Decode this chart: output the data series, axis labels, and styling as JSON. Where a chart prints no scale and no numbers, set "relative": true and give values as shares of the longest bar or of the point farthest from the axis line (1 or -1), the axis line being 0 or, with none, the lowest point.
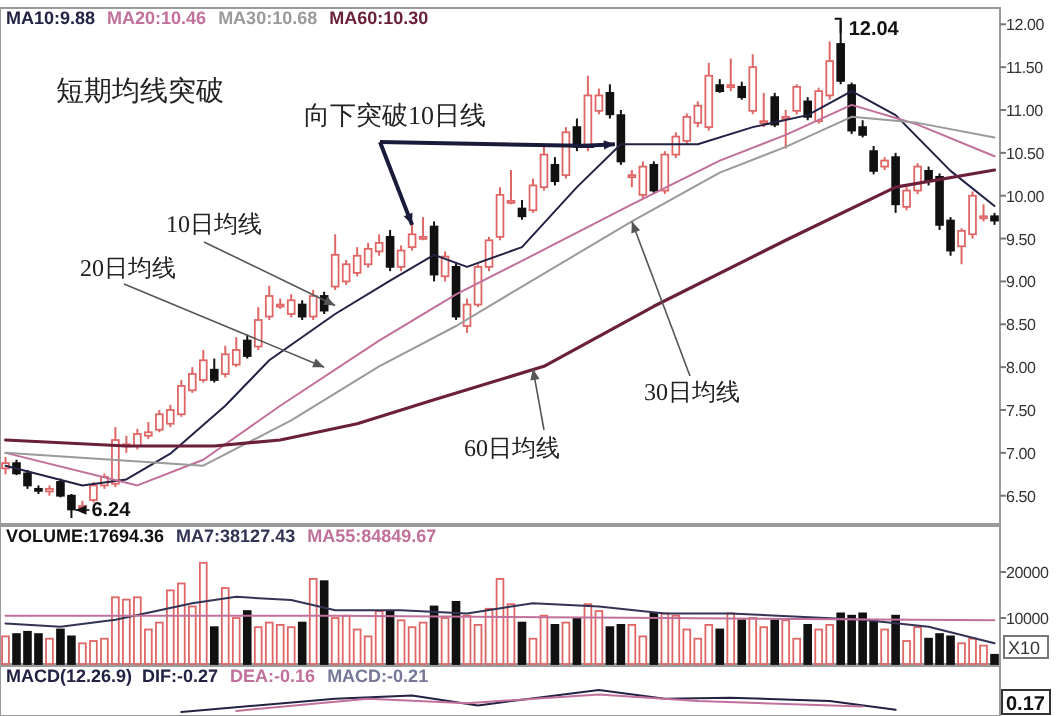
{
  "chart_data": [
    {
      "type": "candlestick",
      "categories": [
        null,
        null,
        null,
        null,
        null,
        null,
        null,
        null,
        null,
        null,
        null,
        null,
        null,
        null,
        null,
        null,
        null,
        null,
        null,
        null,
        null,
        null,
        null,
        null,
        null,
        null,
        null,
        null,
        null,
        null,
        null,
        null,
        null,
        null,
        null,
        null,
        null,
        null,
        null,
        null,
        null,
        null,
        null,
        null,
        null,
        null,
        null,
        null,
        null,
        null,
        null,
        null,
        null,
        null,
        null,
        null,
        null,
        null,
        null,
        null,
        null,
        null,
        null,
        null,
        null,
        null,
        null,
        null,
        null,
        null,
        null,
        null,
        null,
        null,
        null,
        null,
        null,
        null,
        null,
        null,
        null,
        null,
        null,
        null,
        null,
        null,
        null,
        null,
        null,
        null,
        null
      ],
      "ohlc": [
        [
          6.82,
          6.95,
          6.75,
          6.88
        ],
        [
          6.88,
          6.92,
          6.74,
          6.76
        ],
        [
          6.76,
          6.8,
          6.58,
          6.62
        ],
        [
          6.58,
          6.62,
          6.52,
          6.56
        ],
        [
          6.55,
          6.62,
          6.5,
          6.58
        ],
        [
          6.66,
          6.7,
          6.48,
          6.5
        ],
        [
          6.5,
          6.52,
          6.24,
          6.34
        ],
        [
          6.36,
          6.44,
          6.3,
          6.38
        ],
        [
          6.45,
          6.66,
          6.42,
          6.62
        ],
        [
          6.62,
          6.76,
          6.58,
          6.72
        ],
        [
          6.64,
          7.3,
          6.6,
          7.15
        ],
        [
          7.08,
          7.2,
          7.0,
          7.1
        ],
        [
          7.08,
          7.28,
          7.04,
          7.22
        ],
        [
          7.2,
          7.36,
          7.16,
          7.24
        ],
        [
          7.27,
          7.5,
          7.24,
          7.45
        ],
        [
          7.34,
          7.56,
          7.3,
          7.5
        ],
        [
          7.45,
          7.85,
          7.42,
          7.78
        ],
        [
          7.73,
          8.0,
          7.7,
          7.92
        ],
        [
          7.85,
          8.2,
          7.82,
          8.08
        ],
        [
          7.97,
          8.1,
          7.82,
          7.85
        ],
        [
          7.92,
          8.25,
          7.88,
          8.15
        ],
        [
          8.03,
          8.35,
          8.0,
          8.2
        ],
        [
          8.31,
          8.38,
          8.1,
          8.13
        ],
        [
          8.24,
          8.7,
          8.2,
          8.55
        ],
        [
          8.59,
          8.95,
          8.55,
          8.83
        ],
        [
          8.73,
          8.8,
          8.68,
          8.73
        ],
        [
          8.62,
          8.85,
          8.58,
          8.78
        ],
        [
          8.73,
          8.78,
          8.55,
          8.59
        ],
        [
          8.59,
          8.9,
          8.55,
          8.83
        ],
        [
          8.83,
          8.88,
          8.62,
          8.66
        ],
        [
          8.94,
          9.55,
          8.9,
          9.31
        ],
        [
          9.0,
          9.25,
          8.96,
          9.2
        ],
        [
          9.1,
          9.4,
          9.06,
          9.3
        ],
        [
          9.2,
          9.45,
          9.16,
          9.38
        ],
        [
          9.35,
          9.55,
          9.3,
          9.45
        ],
        [
          9.52,
          9.6,
          9.12,
          9.17
        ],
        [
          9.17,
          9.42,
          9.12,
          9.36
        ],
        [
          9.4,
          9.7,
          9.36,
          9.55
        ],
        [
          9.52,
          9.75,
          9.48,
          9.52
        ],
        [
          9.64,
          9.7,
          9.0,
          9.08
        ],
        [
          9.06,
          9.35,
          9.0,
          9.29
        ],
        [
          9.17,
          9.22,
          8.55,
          8.59
        ],
        [
          8.48,
          8.8,
          8.4,
          8.73
        ],
        [
          8.73,
          9.2,
          8.7,
          9.17
        ],
        [
          9.17,
          9.52,
          9.12,
          9.48
        ],
        [
          9.52,
          10.1,
          9.48,
          10.01
        ],
        [
          9.94,
          10.3,
          9.9,
          9.94
        ],
        [
          9.85,
          9.95,
          9.72,
          9.76
        ],
        [
          9.83,
          10.2,
          9.8,
          10.12
        ],
        [
          10.1,
          10.6,
          10.06,
          10.48
        ],
        [
          10.36,
          10.45,
          10.12,
          10.17
        ],
        [
          10.24,
          10.8,
          10.2,
          10.74
        ],
        [
          10.8,
          10.9,
          10.52,
          10.57
        ],
        [
          10.57,
          11.4,
          10.52,
          11.17
        ],
        [
          10.99,
          11.25,
          10.95,
          11.17
        ],
        [
          11.2,
          11.3,
          10.9,
          10.95
        ],
        [
          10.94,
          11.0,
          10.36,
          10.4
        ],
        [
          10.24,
          10.3,
          10.1,
          10.24
        ],
        [
          10.01,
          10.4,
          9.96,
          10.34
        ],
        [
          10.36,
          10.4,
          10.02,
          10.06
        ],
        [
          10.06,
          10.52,
          10.02,
          10.48
        ],
        [
          10.48,
          10.74,
          10.44,
          10.69
        ],
        [
          10.64,
          10.96,
          10.6,
          10.92
        ],
        [
          10.85,
          11.1,
          10.8,
          11.05
        ],
        [
          10.8,
          11.55,
          10.76,
          11.4
        ],
        [
          11.29,
          11.36,
          11.2,
          11.22
        ],
        [
          11.29,
          11.6,
          11.22,
          11.29
        ],
        [
          11.27,
          11.33,
          11.12,
          11.15
        ],
        [
          10.99,
          11.65,
          10.95,
          11.5
        ],
        [
          10.87,
          11.2,
          10.8,
          10.87
        ],
        [
          11.15,
          11.2,
          10.8,
          10.83
        ],
        [
          10.92,
          11.0,
          10.55,
          10.92
        ],
        [
          10.99,
          11.3,
          10.95,
          11.27
        ],
        [
          11.1,
          11.15,
          10.88,
          10.92
        ],
        [
          10.87,
          11.26,
          10.84,
          11.22
        ],
        [
          11.17,
          11.8,
          11.12,
          11.57
        ],
        [
          11.77,
          12.04,
          11.3,
          11.34
        ],
        [
          11.29,
          11.32,
          10.72,
          10.76
        ],
        [
          10.8,
          10.88,
          10.68,
          10.71
        ],
        [
          10.52,
          10.58,
          10.25,
          10.29
        ],
        [
          10.34,
          10.45,
          10.3,
          10.41
        ],
        [
          10.45,
          10.5,
          9.8,
          9.9
        ],
        [
          9.87,
          10.1,
          9.83,
          10.06
        ],
        [
          10.06,
          10.38,
          10.02,
          10.34
        ],
        [
          10.29,
          10.34,
          10.12,
          10.17
        ],
        [
          10.22,
          10.26,
          9.6,
          9.66
        ],
        [
          9.71,
          9.75,
          9.3,
          9.36
        ],
        [
          9.41,
          9.62,
          9.2,
          9.59
        ],
        [
          9.55,
          10.05,
          9.5,
          10.0
        ],
        [
          9.76,
          9.9,
          9.7,
          9.76
        ],
        [
          9.76,
          9.8,
          9.66,
          9.71
        ]
      ],
      "colors": [
        "#e06666",
        "#111111",
        "#111111",
        "#111111",
        "#e06666",
        "#111111",
        "#111111",
        "#e06666",
        "#e06666",
        "#e06666",
        "#e06666",
        "#e06666",
        "#e06666",
        "#e06666",
        "#e06666",
        "#e06666",
        "#e06666",
        "#e06666",
        "#e06666",
        "#111111",
        "#e06666",
        "#e06666",
        "#111111",
        "#e06666",
        "#e06666",
        "#e06666",
        "#e06666",
        "#111111",
        "#e06666",
        "#111111",
        "#e06666",
        "#e06666",
        "#e06666",
        "#e06666",
        "#e06666",
        "#111111",
        "#e06666",
        "#e06666",
        "#e06666",
        "#111111",
        "#e06666",
        "#111111",
        "#e06666",
        "#e06666",
        "#e06666",
        "#e06666",
        "#e06666",
        "#111111",
        "#e06666",
        "#e06666",
        "#111111",
        "#e06666",
        "#111111",
        "#e06666",
        "#e06666",
        "#111111",
        "#111111",
        "#e06666",
        "#e06666",
        "#111111",
        "#e06666",
        "#e06666",
        "#e06666",
        "#e06666",
        "#e06666",
        "#111111",
        "#e06666",
        "#111111",
        "#e06666",
        "#e06666",
        "#111111",
        "#e06666",
        "#e06666",
        "#111111",
        "#e06666",
        "#e06666",
        "#111111",
        "#111111",
        "#111111",
        "#111111",
        "#e06666",
        "#111111",
        "#e06666",
        "#e06666",
        "#111111",
        "#111111",
        "#111111",
        "#e06666",
        "#e06666",
        "#e06666",
        "#111111"
      ],
      "series": [
        {
          "name": "MA10:9.88",
          "type": "line",
          "color": "#222244",
          "values": [
            6.85,
            null,
            null,
            null,
            null,
            null,
            null,
            6.62,
            null,
            null,
            null,
            6.69,
            null,
            null,
            null,
            6.99,
            null,
            null,
            null,
            null,
            7.55,
            null,
            null,
            null,
            8.08,
            null,
            null,
            null,
            null,
            null,
            8.62,
            null,
            null,
            null,
            null,
            9.01,
            null,
            null,
            null,
            9.31,
            null,
            null,
            9.17,
            null,
            null,
            null,
            null,
            9.4,
            null,
            null,
            null,
            null,
            10.1,
            null,
            null,
            null,
            10.6,
            null,
            null,
            null,
            null,
            null,
            null,
            10.6,
            null,
            null,
            null,
            null,
            10.8,
            null,
            null,
            null,
            null,
            10.94,
            null,
            null,
            null,
            11.22,
            null,
            null,
            null,
            10.94,
            null,
            null,
            null,
            null,
            10.29,
            null,
            null,
            null,
            9.88
          ]
        },
        {
          "name": "MA20:10.46",
          "type": "line",
          "color": "#c0709a",
          "values": [
            7.0,
            null,
            null,
            null,
            null,
            null,
            null,
            null,
            null,
            null,
            null,
            null,
            6.62,
            null,
            null,
            null,
            null,
            null,
            6.92,
            null,
            null,
            null,
            null,
            null,
            null,
            7.55,
            null,
            null,
            null,
            null,
            null,
            null,
            null,
            null,
            8.31,
            null,
            null,
            null,
            null,
            null,
            null,
            8.85,
            null,
            null,
            null,
            null,
            null,
            9.24,
            null,
            null,
            null,
            null,
            null,
            null,
            null,
            null,
            null,
            9.9,
            null,
            null,
            null,
            null,
            null,
            null,
            null,
            10.41,
            null,
            null,
            null,
            null,
            null,
            10.71,
            null,
            null,
            null,
            null,
            null,
            11.06,
            null,
            null,
            null,
            null,
            null,
            10.83,
            null,
            null,
            null,
            null,
            null,
            null,
            10.46
          ]
        },
        {
          "name": "MA30:10.68",
          "type": "line",
          "color": "#9a9a9a",
          "values": [
            7.0,
            null,
            null,
            null,
            null,
            null,
            null,
            null,
            null,
            null,
            null,
            null,
            null,
            null,
            null,
            null,
            null,
            null,
            6.85,
            null,
            null,
            null,
            null,
            null,
            null,
            null,
            7.38,
            null,
            null,
            null,
            null,
            null,
            null,
            null,
            8.01,
            null,
            null,
            null,
            null,
            null,
            null,
            8.48,
            null,
            null,
            null,
            null,
            null,
            8.94,
            null,
            null,
            null,
            null,
            null,
            null,
            null,
            null,
            null,
            9.7,
            null,
            null,
            null,
            null,
            null,
            null,
            null,
            10.27,
            null,
            null,
            null,
            null,
            null,
            10.57,
            null,
            null,
            null,
            null,
            null,
            10.92,
            null,
            null,
            null,
            null,
            null,
            10.85,
            null,
            null,
            null,
            null,
            null,
            null,
            10.68
          ]
        },
        {
          "name": "MA60:10.30",
          "type": "line",
          "color": "#6a1f3a",
          "values": [
            7.15,
            null,
            null,
            null,
            null,
            null,
            null,
            null,
            null,
            null,
            null,
            7.08,
            null,
            null,
            null,
            null,
            null,
            null,
            null,
            7.08,
            null,
            null,
            null,
            null,
            null,
            7.15,
            null,
            null,
            null,
            null,
            null,
            null,
            7.34,
            null,
            null,
            null,
            null,
            null,
            null,
            7.62,
            null,
            null,
            null,
            null,
            null,
            null,
            null,
            null,
            null,
            8.01,
            null,
            null,
            null,
            null,
            null,
            null,
            null,
            null,
            null,
            8.71,
            null,
            null,
            null,
            null,
            null,
            null,
            null,
            null,
            null,
            null,
            null,
            9.48,
            null,
            null,
            null,
            null,
            null,
            null,
            null,
            null,
            null,
            10.1,
            null,
            null,
            null,
            null,
            null,
            null,
            null,
            null,
            10.3
          ]
        }
      ],
      "legend": "top left",
      "ylim": [
        6.17,
        12.19
      ],
      "yticks": [
        {
          "value": 6.5,
          "label": "6.50"
        },
        {
          "value": 7.0,
          "label": "7.00"
        },
        {
          "value": 7.5,
          "label": "7.50"
        },
        {
          "value": 8.0,
          "label": "8.00"
        },
        {
          "value": 8.5,
          "label": "8.50"
        },
        {
          "value": 9.0,
          "label": "9.00"
        },
        {
          "value": 9.5,
          "label": "9.50"
        },
        {
          "value": 10.0,
          "label": "10.00"
        },
        {
          "value": 10.5,
          "label": "10.50"
        },
        {
          "value": 11.0,
          "label": "11.00"
        },
        {
          "value": 11.5,
          "label": "11.50"
        },
        {
          "value": 12.0,
          "label": "12.00"
        }
      ],
      "tick_labels": "y",
      "annotations": [
        "短期均线突破",
        "向下突破10日线",
        "10日均线",
        "20日均线",
        "30日均线",
        "60日均线",
        "12.04",
        "6.24"
      ]
    },
    {
      "type": "bar",
      "categories": [
        null,
        null,
        null,
        null,
        null,
        null,
        null,
        null,
        null,
        null,
        null,
        null,
        null,
        null,
        null,
        null,
        null,
        null,
        null,
        null,
        null,
        null,
        null,
        null,
        null,
        null,
        null,
        null,
        null,
        null,
        null,
        null,
        null,
        null,
        null,
        null,
        null,
        null,
        null,
        null,
        null,
        null,
        null,
        null,
        null,
        null,
        null,
        null,
        null,
        null,
        null,
        null,
        null,
        null,
        null,
        null,
        null,
        null,
        null,
        null,
        null,
        null,
        null,
        null,
        null,
        null,
        null,
        null,
        null,
        null,
        null,
        null,
        null,
        null,
        null,
        null,
        null,
        null,
        null,
        null,
        null,
        null,
        null,
        null,
        null,
        null,
        null,
        null,
        null,
        null,
        null
      ],
      "series": [
        {
          "name": "VOLUME:17694.36",
          "color": "#111111",
          "colors": [
            "#e06666",
            "#111111",
            "#111111",
            "#111111",
            "#e06666",
            "#111111",
            "#111111",
            "#e06666",
            "#e06666",
            "#e06666",
            "#e06666",
            "#e06666",
            "#e06666",
            "#e06666",
            "#e06666",
            "#e06666",
            "#e06666",
            "#e06666",
            "#e06666",
            "#111111",
            "#e06666",
            "#e06666",
            "#111111",
            "#e06666",
            "#e06666",
            "#e06666",
            "#e06666",
            "#111111",
            "#e06666",
            "#111111",
            "#e06666",
            "#e06666",
            "#e06666",
            "#e06666",
            "#e06666",
            "#111111",
            "#e06666",
            "#e06666",
            "#e06666",
            "#111111",
            "#e06666",
            "#111111",
            "#e06666",
            "#e06666",
            "#e06666",
            "#e06666",
            "#e06666",
            "#111111",
            "#e06666",
            "#e06666",
            "#111111",
            "#e06666",
            "#111111",
            "#e06666",
            "#e06666",
            "#111111",
            "#111111",
            "#e06666",
            "#e06666",
            "#111111",
            "#e06666",
            "#e06666",
            "#e06666",
            "#e06666",
            "#e06666",
            "#111111",
            "#e06666",
            "#111111",
            "#e06666",
            "#e06666",
            "#111111",
            "#e06666",
            "#e06666",
            "#111111",
            "#e06666",
            "#e06666",
            "#111111",
            "#111111",
            "#111111",
            "#111111",
            "#e06666",
            "#111111",
            "#e06666",
            "#e06666",
            "#111111",
            "#111111",
            "#111111",
            "#e06666",
            "#e06666",
            "#e06666",
            "#111111"
          ],
          "values": [
            6000,
            6500,
            7000,
            6500,
            5500,
            7500,
            6000,
            4500,
            5000,
            5500,
            14500,
            14000,
            14500,
            7500,
            9000,
            16000,
            17500,
            12500,
            22000,
            8000,
            16500,
            10000,
            11500,
            8000,
            9000,
            8500,
            8000,
            9000,
            18500,
            18000,
            10000,
            10500,
            7500,
            6000,
            11500,
            11500,
            9500,
            8000,
            9000,
            12500,
            10000,
            13500,
            10500,
            8500,
            12000,
            18500,
            13000,
            9000,
            5500,
            10500,
            8500,
            9000,
            10000,
            13000,
            11500,
            8000,
            8500,
            8500,
            6000,
            11000,
            11000,
            10500,
            7500,
            5500,
            8500,
            7500,
            11000,
            9500,
            10000,
            8000,
            9500,
            9500,
            5500,
            8500,
            7500,
            8500,
            11000,
            10500,
            11000,
            9500,
            7500,
            10500,
            5000,
            8000,
            5500,
            6500,
            6000,
            4500,
            5500,
            4000,
            2000
          ]
        },
        {
          "name": "MA7:38127.43",
          "type": "line",
          "color": "#333355",
          "values": [
            8800,
            null,
            null,
            null,
            null,
            8100,
            null,
            null,
            null,
            null,
            9600,
            null,
            null,
            null,
            null,
            null,
            null,
            13200,
            null,
            null,
            null,
            14600,
            null,
            null,
            null,
            null,
            13900,
            null,
            null,
            null,
            11700,
            null,
            null,
            null,
            null,
            null,
            11700,
            null,
            null,
            null,
            null,
            null,
            11000,
            null,
            null,
            null,
            null,
            null,
            13200,
            null,
            null,
            null,
            null,
            null,
            12500,
            null,
            null,
            null,
            null,
            null,
            11000,
            null,
            null,
            null,
            null,
            null,
            11000,
            null,
            null,
            null,
            null,
            null,
            null,
            null,
            null,
            null,
            null,
            null,
            9600,
            null,
            null,
            null,
            null,
            null,
            8100,
            null,
            null,
            null,
            null,
            null,
            4500
          ]
        },
        {
          "name": "MA55:84849.67",
          "type": "line",
          "color": "#c0709a",
          "values": [
            10500,
            null,
            null,
            null,
            null,
            null,
            null,
            null,
            null,
            null,
            null,
            null,
            null,
            null,
            null,
            null,
            null,
            null,
            null,
            null,
            null,
            null,
            null,
            null,
            null,
            null,
            null,
            null,
            null,
            null,
            10500,
            null,
            null,
            null,
            null,
            null,
            null,
            null,
            null,
            null,
            null,
            null,
            null,
            null,
            null,
            null,
            null,
            null,
            null,
            null,
            null,
            null,
            null,
            null,
            null,
            null,
            null,
            null,
            null,
            null,
            10000,
            null,
            null,
            null,
            null,
            null,
            null,
            null,
            null,
            null,
            null,
            null,
            null,
            null,
            null,
            null,
            null,
            null,
            null,
            null,
            null,
            null,
            null,
            null,
            null,
            null,
            null,
            null,
            null,
            null,
            9500
          ]
        }
      ],
      "legend": "top left",
      "ylim": [
        0,
        30000
      ],
      "yticks": [
        10000,
        20000
      ],
      "tick_labels": "y",
      "annotations": [
        "X10"
      ]
    },
    {
      "type": "line",
      "title": "MACD(12.26.9)",
      "relative": true,
      "categories": [
        null,
        null,
        null,
        null,
        null,
        null,
        null,
        null,
        null,
        null,
        null,
        null,
        null,
        null,
        null,
        null,
        null,
        null,
        null,
        null,
        null,
        null,
        null,
        null,
        null,
        null,
        null,
        null,
        null,
        null,
        null,
        null,
        null,
        null,
        null,
        null,
        null,
        null,
        null,
        null,
        null,
        null,
        null,
        null,
        null,
        null,
        null,
        null,
        null,
        null,
        null,
        null,
        null,
        null,
        null,
        null,
        null,
        null,
        null,
        null,
        null,
        null,
        null,
        null,
        null,
        null,
        null,
        null,
        null,
        null,
        null,
        null,
        null,
        null,
        null,
        null,
        null,
        null,
        null,
        null,
        null,
        null,
        null,
        null,
        null,
        null,
        null,
        null,
        null,
        null,
        null
      ],
      "series": [
        {
          "name": "DIF:-0.27",
          "color": "#222244",
          "values": [
            null,
            null,
            null,
            null,
            null,
            null,
            null,
            null,
            null,
            null,
            null,
            null,
            null,
            null,
            null,
            null,
            0,
            null,
            null,
            null,
            null,
            null,
            null,
            null,
            null,
            null,
            null,
            null,
            null,
            null,
            0.6,
            null,
            null,
            null,
            null,
            null,
            null,
            0.75,
            null,
            null,
            null,
            null,
            null,
            0.3,
            null,
            null,
            null,
            null,
            null,
            null,
            null,
            null,
            null,
            null,
            1.0,
            null,
            null,
            null,
            null,
            null,
            0.6,
            null,
            null,
            null,
            null,
            null,
            0.65,
            null,
            null,
            null,
            null,
            null,
            null,
            null,
            null,
            0.5,
            null,
            null,
            null,
            null,
            null,
            0.1,
            null,
            null,
            null,
            null,
            null,
            null,
            null,
            null,
            null
          ]
        },
        {
          "name": "DEA:-0.16",
          "color": "#c0709a",
          "values": [
            null,
            null,
            null,
            null,
            null,
            null,
            null,
            null,
            null,
            null,
            null,
            null,
            null,
            null,
            null,
            null,
            null,
            null,
            null,
            null,
            null,
            0.05,
            null,
            null,
            null,
            null,
            null,
            null,
            null,
            null,
            null,
            null,
            null,
            0.6,
            null,
            null,
            null,
            null,
            null,
            null,
            null,
            null,
            0.4,
            null,
            null,
            null,
            null,
            null,
            null,
            null,
            null,
            null,
            null,
            null,
            0.8,
            null,
            null,
            null,
            null,
            null,
            null,
            null,
            null,
            0.5,
            null,
            null,
            null,
            null,
            null,
            null,
            null,
            null,
            null,
            null,
            null,
            null,
            null,
            null,
            0.25,
            null,
            null,
            null,
            null,
            null,
            null,
            null,
            null,
            null,
            null,
            null,
            null
          ]
        }
      ],
      "legend": "top left",
      "annotations": [
        "MACD:-0.21",
        "0.17"
      ]
    }
  ]
}
